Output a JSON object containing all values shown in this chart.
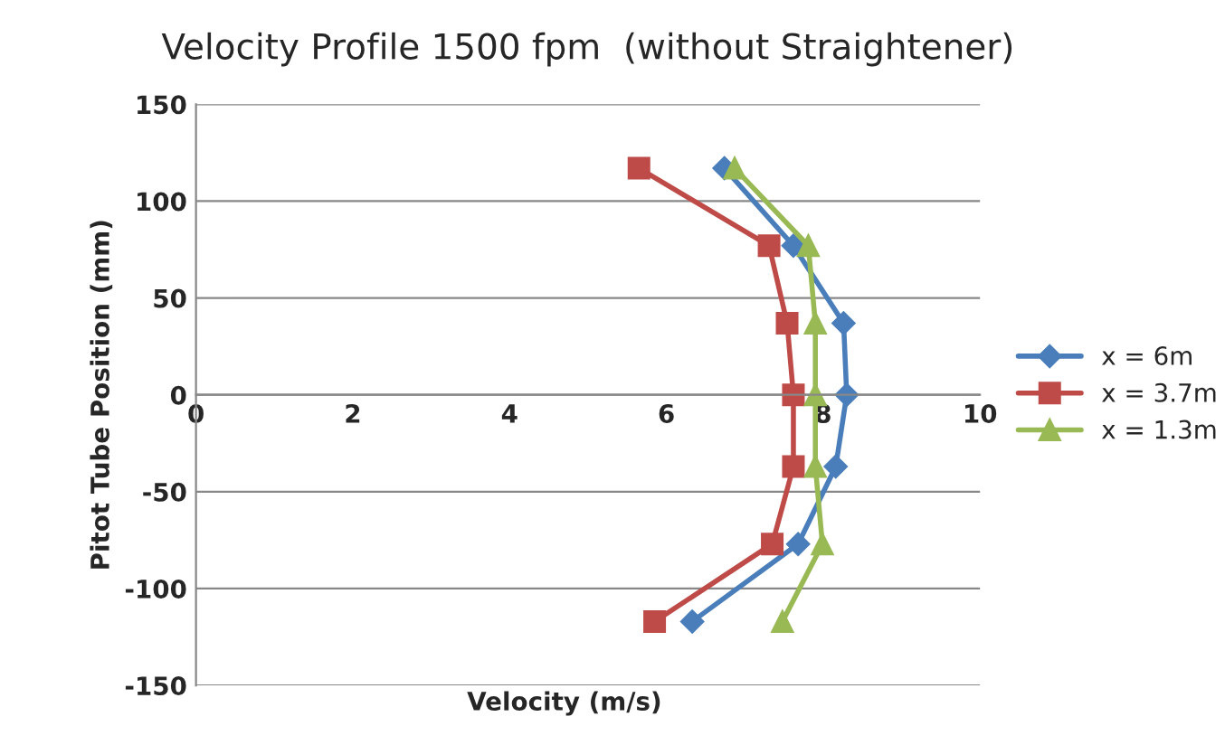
{
  "chart_data": {
    "type": "line",
    "title": "Velocity Profile 1500 fpm  (without Straightener)",
    "xlabel": "Velocity (m/s)",
    "ylabel": "Pitot Tube Position (mm)",
    "xlim": [
      0,
      10
    ],
    "xticks": [
      0,
      2,
      4,
      6,
      8,
      10
    ],
    "ylim": [
      -150,
      150
    ],
    "yticks": [
      -150,
      -100,
      -50,
      0,
      50,
      100,
      150
    ],
    "grid": "y",
    "legend": "right",
    "series": [
      {
        "name": "x = 6m",
        "color": "#4a7ebb",
        "marker": "diamond",
        "x": [
          6.74,
          7.62,
          8.26,
          8.3,
          8.16,
          7.68,
          6.33
        ],
        "values": [
          117,
          77,
          37,
          0,
          -37,
          -77,
          -117
        ]
      },
      {
        "name": "x = 3.7m",
        "color": "#be4b48",
        "marker": "square",
        "x": [
          5.65,
          7.31,
          7.54,
          7.62,
          7.62,
          7.35,
          5.85
        ],
        "values": [
          117,
          77,
          37,
          0,
          -37,
          -77,
          -117
        ]
      },
      {
        "name": "x = 1.3m",
        "color": "#98b954",
        "marker": "triangle",
        "x": [
          6.87,
          7.81,
          7.9,
          7.9,
          7.9,
          7.99,
          7.48
        ],
        "values": [
          117,
          77,
          37,
          0,
          -37,
          -77,
          -117
        ]
      }
    ]
  }
}
